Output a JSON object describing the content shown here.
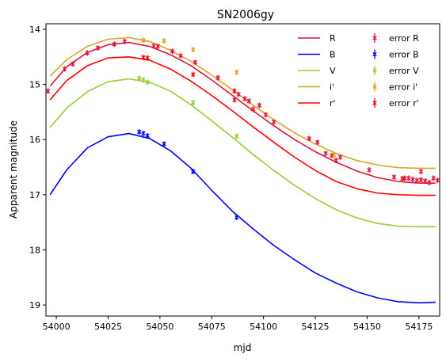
{
  "chart_data": {
    "type": "line",
    "title": "SN2006gy",
    "xlabel": "mjd",
    "ylabel": "Apparent magnitude",
    "xlim": [
      53995,
      54185
    ],
    "ylim": [
      19.2,
      13.9
    ],
    "y_inverted": true,
    "xticks": [
      54000,
      54025,
      54050,
      54075,
      54100,
      54125,
      54150,
      54175
    ],
    "xtick_labels": [
      "54000",
      "54025",
      "54050",
      "54075",
      "54100",
      "54125",
      "54150",
      "54175"
    ],
    "yticks": [
      14,
      15,
      16,
      17,
      18,
      19
    ],
    "ytick_labels": [
      "14",
      "15",
      "16",
      "17",
      "18",
      "19"
    ],
    "grid": false,
    "legend_placement": "top-right",
    "legend_columns": 2,
    "series": [
      {
        "name": "R",
        "kind": "line",
        "color": "#dc143c",
        "x": [
          53997,
          54005,
          54015,
          54025,
          54035,
          54045,
          54055,
          54065,
          54075,
          54085,
          54095,
          54105,
          54115,
          54125,
          54135,
          54145,
          54155,
          54165,
          54175,
          54183
        ],
        "y": [
          15.03,
          14.68,
          14.42,
          14.28,
          14.24,
          14.31,
          14.46,
          14.66,
          14.92,
          15.2,
          15.48,
          15.75,
          16.0,
          16.22,
          16.41,
          16.57,
          16.69,
          16.76,
          16.79,
          16.79
        ]
      },
      {
        "name": "B",
        "kind": "line",
        "color": "#0000ff",
        "x": [
          53997,
          54005,
          54015,
          54025,
          54035,
          54045,
          54055,
          54065,
          54075,
          54085,
          54095,
          54105,
          54115,
          54125,
          54135,
          54145,
          54155,
          54165,
          54175,
          54183
        ],
        "y": [
          17.0,
          16.55,
          16.15,
          15.95,
          15.89,
          15.98,
          16.2,
          16.52,
          16.92,
          17.3,
          17.62,
          17.92,
          18.18,
          18.42,
          18.6,
          18.76,
          18.87,
          18.94,
          18.96,
          18.95
        ]
      },
      {
        "name": "V",
        "kind": "line",
        "color": "#9acd32",
        "x": [
          53997,
          54005,
          54015,
          54025,
          54035,
          54045,
          54055,
          54065,
          54075,
          54085,
          54095,
          54105,
          54115,
          54125,
          54135,
          54145,
          54155,
          54165,
          54175,
          54183
        ],
        "y": [
          15.78,
          15.43,
          15.13,
          14.95,
          14.9,
          14.96,
          15.12,
          15.37,
          15.66,
          15.96,
          16.27,
          16.56,
          16.83,
          17.07,
          17.27,
          17.42,
          17.52,
          17.57,
          17.58,
          17.58
        ]
      },
      {
        "name": "i'",
        "kind": "line",
        "color": "#daa520",
        "x": [
          53997,
          54005,
          54015,
          54025,
          54035,
          54045,
          54055,
          54065,
          54075,
          54085,
          54095,
          54105,
          54115,
          54125,
          54135,
          54145,
          54155,
          54165,
          54175,
          54183
        ],
        "y": [
          14.85,
          14.55,
          14.31,
          14.18,
          14.15,
          14.22,
          14.38,
          14.58,
          14.83,
          15.1,
          15.38,
          15.64,
          15.88,
          16.08,
          16.25,
          16.38,
          16.46,
          16.51,
          16.52,
          16.52
        ]
      },
      {
        "name": "r'",
        "kind": "line",
        "color": "#ff0000",
        "x": [
          53997,
          54005,
          54015,
          54025,
          54035,
          54045,
          54055,
          54065,
          54075,
          54085,
          54095,
          54105,
          54115,
          54125,
          54135,
          54145,
          54155,
          54165,
          54175,
          54183
        ],
        "y": [
          15.28,
          14.93,
          14.66,
          14.52,
          14.5,
          14.56,
          14.72,
          14.94,
          15.2,
          15.48,
          15.77,
          16.05,
          16.32,
          16.56,
          16.76,
          16.89,
          16.97,
          17.0,
          17.01,
          17.01
        ]
      },
      {
        "name": "error R",
        "kind": "errorbar",
        "color": "#dc143c",
        "x": [
          53996,
          54004,
          54008,
          54015,
          54020,
          54028,
          54033,
          54047,
          54049,
          54056,
          54060,
          54067,
          54078,
          54086,
          54088,
          54091,
          54093,
          54095,
          54098,
          54101,
          54105,
          54122,
          54126,
          54130,
          54133,
          54135,
          54137,
          54151,
          54163,
          54167,
          54170,
          54172,
          54174,
          54176,
          54178,
          54180,
          54182,
          54184
        ],
        "y": [
          15.12,
          14.72,
          14.63,
          14.43,
          14.34,
          14.27,
          14.22,
          14.3,
          14.31,
          14.4,
          14.48,
          14.6,
          14.88,
          15.28,
          15.18,
          15.26,
          15.3,
          15.45,
          15.38,
          15.55,
          15.68,
          15.98,
          16.05,
          16.25,
          16.29,
          16.38,
          16.32,
          16.55,
          16.68,
          16.71,
          16.7,
          16.72,
          16.74,
          16.58,
          16.75,
          16.78,
          16.7,
          16.74
        ]
      },
      {
        "name": "error B",
        "kind": "errorbar",
        "color": "#0000ff",
        "x": [
          54040,
          54042,
          54044,
          54052,
          54066,
          54087
        ],
        "y": [
          15.86,
          15.89,
          15.93,
          16.08,
          16.58,
          17.41
        ]
      },
      {
        "name": "error V",
        "kind": "errorbar",
        "color": "#9acd32",
        "x": [
          54040,
          54042,
          54044,
          54066,
          54087
        ],
        "y": [
          14.89,
          14.92,
          14.96,
          15.33,
          15.94
        ]
      },
      {
        "name": "error i'",
        "kind": "errorbar",
        "color": "#daa520",
        "x": [
          54042,
          54052,
          54066,
          54087,
          54134
        ],
        "y": [
          14.2,
          14.21,
          14.37,
          14.78,
          16.28
        ]
      },
      {
        "name": "error r'",
        "kind": "errorbar",
        "color": "#ff0000",
        "x": [
          54042,
          54044,
          54066,
          54086,
          54168,
          54176
        ],
        "y": [
          14.51,
          14.52,
          14.82,
          15.12,
          16.7,
          16.73
        ]
      }
    ]
  }
}
